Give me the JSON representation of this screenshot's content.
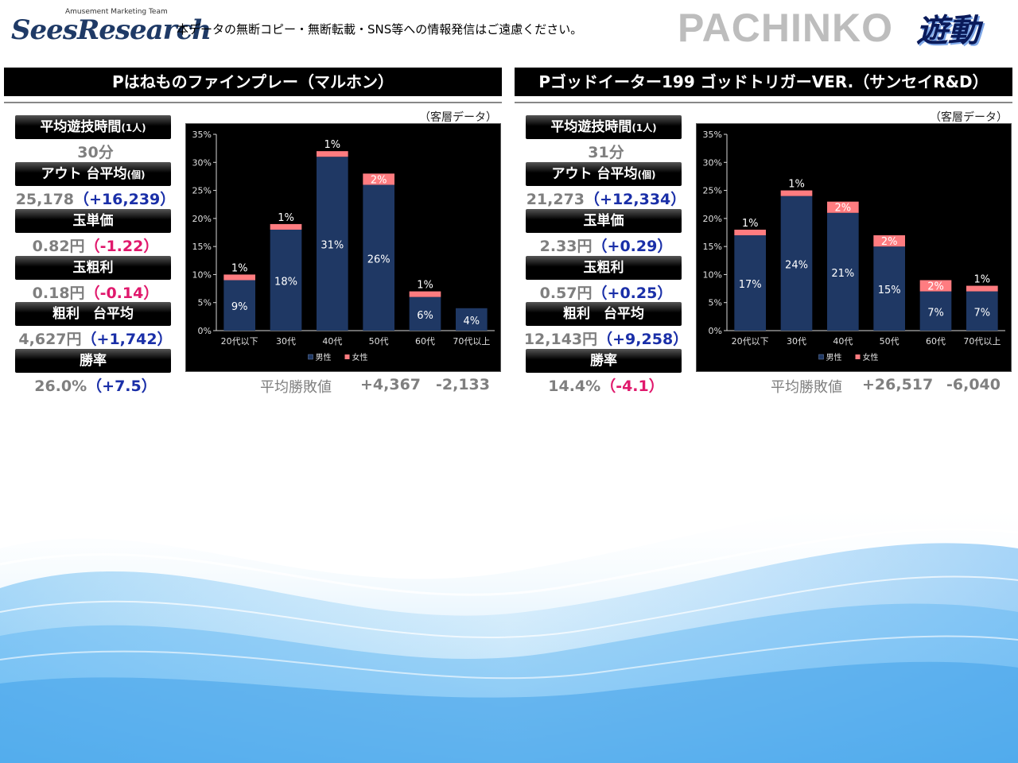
{
  "header": {
    "logo_team": "Amusement Marketing Team",
    "logo_brand": "SeesResearch",
    "notice": "本データの無断コピー・無断転載・SNS等への情報発信はご遠慮ください。",
    "category": "PACHINKO",
    "partner_logo": "遊動"
  },
  "stat_labels": {
    "play_time": "平均遊技時間",
    "play_time_unit": "(1人)",
    "out": "アウト 台平均",
    "out_unit": "(個)",
    "unit_price": "玉単価",
    "gross_per_ball": "玉粗利",
    "gross_avg": "粗利　台平均",
    "win_rate": "勝率"
  },
  "customer_note": "（客層データ）",
  "avg_win_loss_label": "平均勝敗値",
  "legend": {
    "male": "男性",
    "female": "女性"
  },
  "machines": [
    {
      "title": "Pはねものファインプレー（マルホン）",
      "play_time": "30分",
      "out_value": "25,178",
      "out_diff": "（+16,239）",
      "out_dir": "up",
      "unit_price_value": "0.82円",
      "unit_price_diff": "（-1.22）",
      "unit_price_dir": "down",
      "gross_ball_value": "0.18円",
      "gross_ball_diff": "（-0.14）",
      "gross_ball_dir": "down",
      "gross_avg_value": "4,627円",
      "gross_avg_diff": "（+1,742）",
      "gross_avg_dir": "up",
      "win_rate_value": "26.0%",
      "win_rate_diff": "（+7.5）",
      "win_rate_dir": "up",
      "avg_win": "+4,367",
      "avg_loss": "-2,133"
    },
    {
      "title": "Pゴッドイーター199 ゴッドトリガーVER.（サンセイR&D）",
      "play_time": "31分",
      "out_value": "21,273",
      "out_diff": "（+12,334）",
      "out_dir": "up",
      "unit_price_value": "2.33円",
      "unit_price_diff": "（+0.29）",
      "unit_price_dir": "up",
      "gross_ball_value": "0.57円",
      "gross_ball_diff": "（+0.25）",
      "gross_ball_dir": "up",
      "gross_avg_value": "12,143円",
      "gross_avg_diff": "（+9,258）",
      "gross_avg_dir": "up",
      "win_rate_value": "14.4%",
      "win_rate_diff": "（-4.1）",
      "win_rate_dir": "down",
      "avg_win": "+26,517",
      "avg_loss": "-6,040"
    }
  ],
  "chart_data": [
    {
      "type": "bar",
      "stacked": true,
      "categories": [
        "20代以下",
        "30代",
        "40代",
        "50代",
        "60代",
        "70代以上"
      ],
      "series": [
        {
          "name": "男性",
          "values": [
            9,
            18,
            31,
            26,
            6,
            4
          ],
          "color": "#1f3864"
        },
        {
          "name": "女性",
          "values": [
            1,
            1,
            1,
            2,
            1,
            0
          ],
          "color": "#ff7c80"
        }
      ],
      "data_labels": {
        "male": [
          "9%",
          "18%",
          "31%",
          "26%",
          "6%",
          "4%"
        ],
        "female": [
          "1%",
          "1%",
          "1%",
          "2%",
          "1%",
          ""
        ]
      },
      "yticks": [
        "0%",
        "5%",
        "10%",
        "15%",
        "20%",
        "25%",
        "30%",
        "35%"
      ],
      "ylim": [
        0,
        35
      ],
      "grid": false,
      "legend": "bottom"
    },
    {
      "type": "bar",
      "stacked": true,
      "categories": [
        "20代以下",
        "30代",
        "40代",
        "50代",
        "60代",
        "70代以上"
      ],
      "series": [
        {
          "name": "男性",
          "values": [
            17,
            24,
            21,
            15,
            7,
            7
          ],
          "color": "#1f3864"
        },
        {
          "name": "女性",
          "values": [
            1,
            1,
            2,
            2,
            2,
            1
          ],
          "color": "#ff7c80"
        }
      ],
      "data_labels": {
        "male": [
          "17%",
          "24%",
          "21%",
          "15%",
          "7%",
          "7%"
        ],
        "female": [
          "1%",
          "1%",
          "2%",
          "2%",
          "2%",
          "1%"
        ]
      },
      "yticks": [
        "0%",
        "5%",
        "10%",
        "15%",
        "20%",
        "25%",
        "30%",
        "35%"
      ],
      "ylim": [
        0,
        35
      ],
      "grid": false,
      "legend": "bottom"
    }
  ],
  "colors": {
    "male": "#1f3864",
    "female": "#ff7c80",
    "up": "#1a2fa8",
    "down": "#e0186c",
    "value_gray": "#7f7f7f"
  }
}
